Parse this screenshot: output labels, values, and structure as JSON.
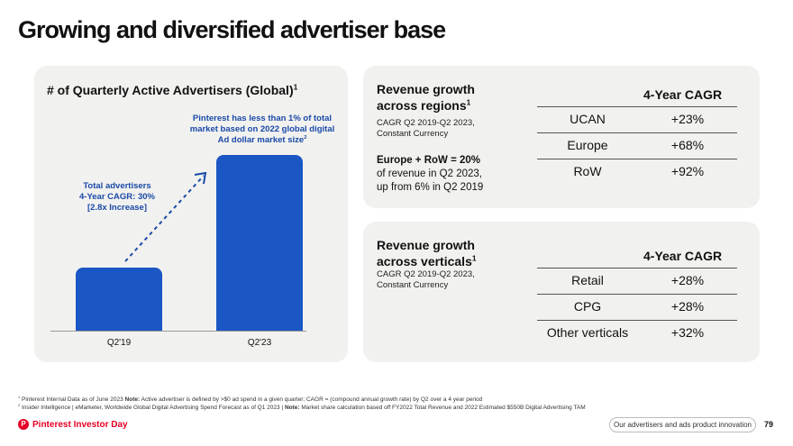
{
  "title": "Growing and diversified advertiser base",
  "advertisers": {
    "heading": "# of Quarterly Active Advertisers (Global)",
    "heading_sup": "1",
    "market_note": "Pinterest has less than 1% of total market based on 2022 global digital Ad dollar market size",
    "market_note_sup": "2",
    "growth_note_line1": "Total advertisers",
    "growth_note_line2": "4-Year CAGR: 30%",
    "growth_note_line3": "[2.8x Increase]",
    "bar_color": "#1a56c4",
    "arrow_color": "#1a4aa8"
  },
  "chart_data": {
    "type": "bar",
    "categories": [
      "Q2'19",
      "Q2'23"
    ],
    "values": [
      1,
      2.8
    ],
    "title": "# of Quarterly Active Advertisers (Global)",
    "xlabel": "",
    "ylabel": "",
    "grid": false
  },
  "regions": {
    "title_line1": "Revenue growth",
    "title_line2": "across regions",
    "title_sup": "1",
    "sub_line1": "CAGR Q2 2019-Q2 2023,",
    "sub_line2": "Constant Currency",
    "bold_note": "Europe + RoW = 20%",
    "note_line1": "of revenue in Q2 2023,",
    "note_line2": "up from 6% in Q2 2019",
    "col_header": "4-Year CAGR",
    "rows": [
      {
        "name": "UCAN",
        "value": "+23%"
      },
      {
        "name": "Europe",
        "value": "+68%"
      },
      {
        "name": "RoW",
        "value": "+92%"
      }
    ]
  },
  "verticals": {
    "title_line1": "Revenue growth",
    "title_line2": "across verticals",
    "title_sup": "1",
    "sub_line1": "CAGR Q2 2019-Q2 2023,",
    "sub_line2": "Constant Currency",
    "col_header": "4-Year CAGR",
    "rows": [
      {
        "name": "Retail",
        "value": "+28%"
      },
      {
        "name": "CPG",
        "value": "+28%"
      },
      {
        "name": "Other verticals",
        "value": "+32%"
      }
    ]
  },
  "footnotes": {
    "f1_sup": "1",
    "f1": "Pinterest Internal Data as of June 2023",
    "f1_bold": "Note:",
    "f1_rest": "Active advertiser is defined by >$0 ad spend in a given quarter; CAGR = (compound annual growth rate) by Q2 over a 4 year period",
    "f2_sup": "2",
    "f2": "Insider Intelligence | eMarketer, Worldwide Global Digital Advertising Spend Forecast as of Q1 2023 |",
    "f2_bold": "Note:",
    "f2_rest": "Market share calculation based off FY2022 Total Revenue and 2022 Estimated $550B Digital Advertising TAM"
  },
  "footer": {
    "logo_text": "Pinterest Investor Day",
    "brand_color": "#e60023",
    "section": "Our advertisers and ads product innovation",
    "page_number": "79"
  }
}
